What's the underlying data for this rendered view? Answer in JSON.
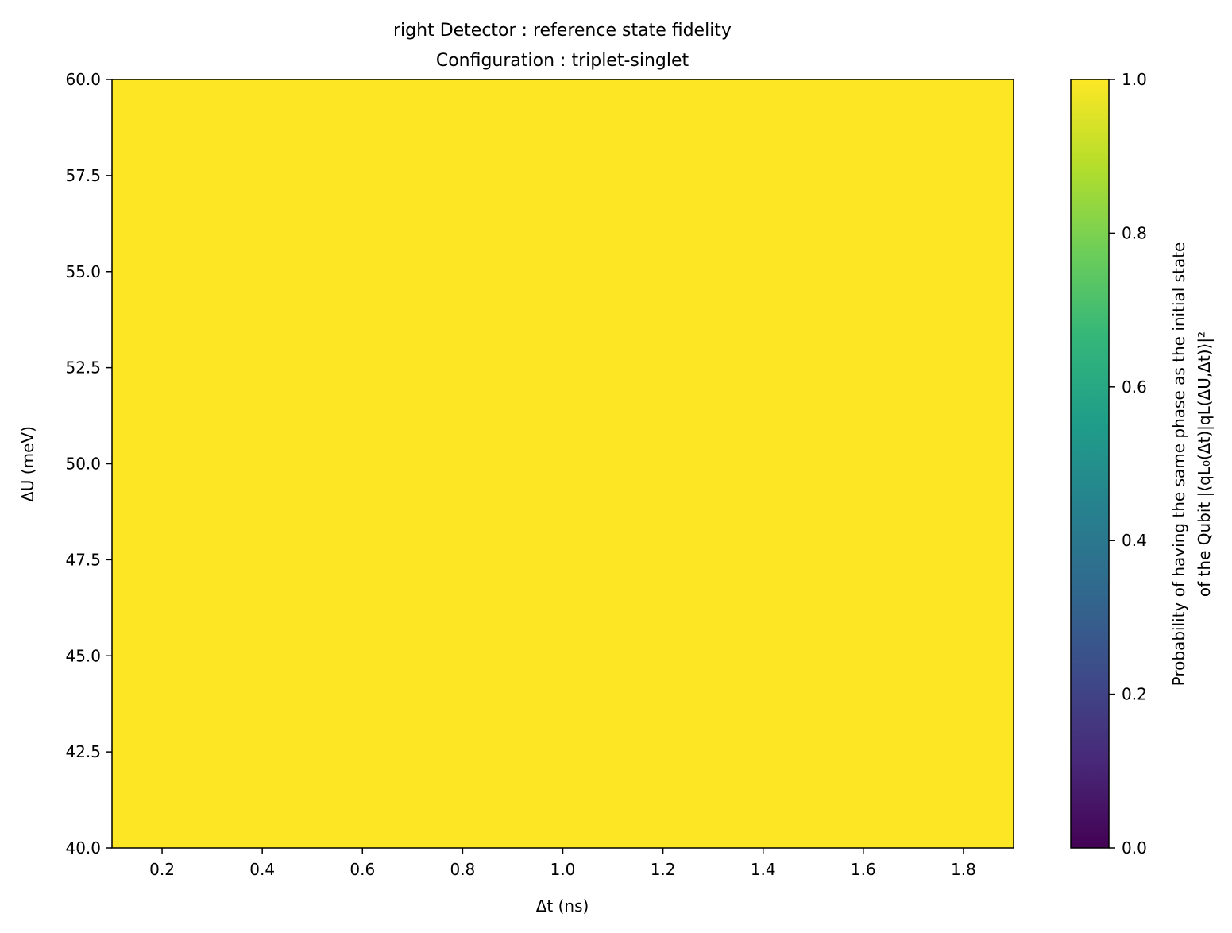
{
  "chart_data": {
    "type": "heatmap",
    "title": "right Detector : reference state fidelity",
    "subtitle": "Configuration : triplet-singlet",
    "xlabel": "Δt (ns)",
    "ylabel": "ΔU (meV)",
    "xlim": [
      0.1,
      1.9
    ],
    "ylim": [
      40.0,
      60.0
    ],
    "x_ticks": [
      "0.2",
      "0.4",
      "0.6",
      "0.8",
      "1.0",
      "1.2",
      "1.4",
      "1.6",
      "1.8"
    ],
    "y_ticks": [
      "40.0",
      "42.5",
      "45.0",
      "47.5",
      "50.0",
      "52.5",
      "55.0",
      "57.5",
      "60.0"
    ],
    "z_value": 1.0,
    "colormap": "viridis",
    "fill_color": "#fde725",
    "colorbar": {
      "label_line1": "Probability of having the same phase as the initial state",
      "label_line2": "of the Qubit |⟨qL₀(Δt)|qL(ΔU,Δt)⟩|²",
      "range": [
        0.0,
        1.0
      ],
      "ticks": [
        "0.0",
        "0.2",
        "0.4",
        "0.6",
        "0.8",
        "1.0"
      ],
      "stops": [
        "#440154",
        "#482878",
        "#3e4a89",
        "#31688e",
        "#26828e",
        "#1f9e89",
        "#35b779",
        "#6ece58",
        "#b5de2b",
        "#fde725"
      ]
    }
  }
}
